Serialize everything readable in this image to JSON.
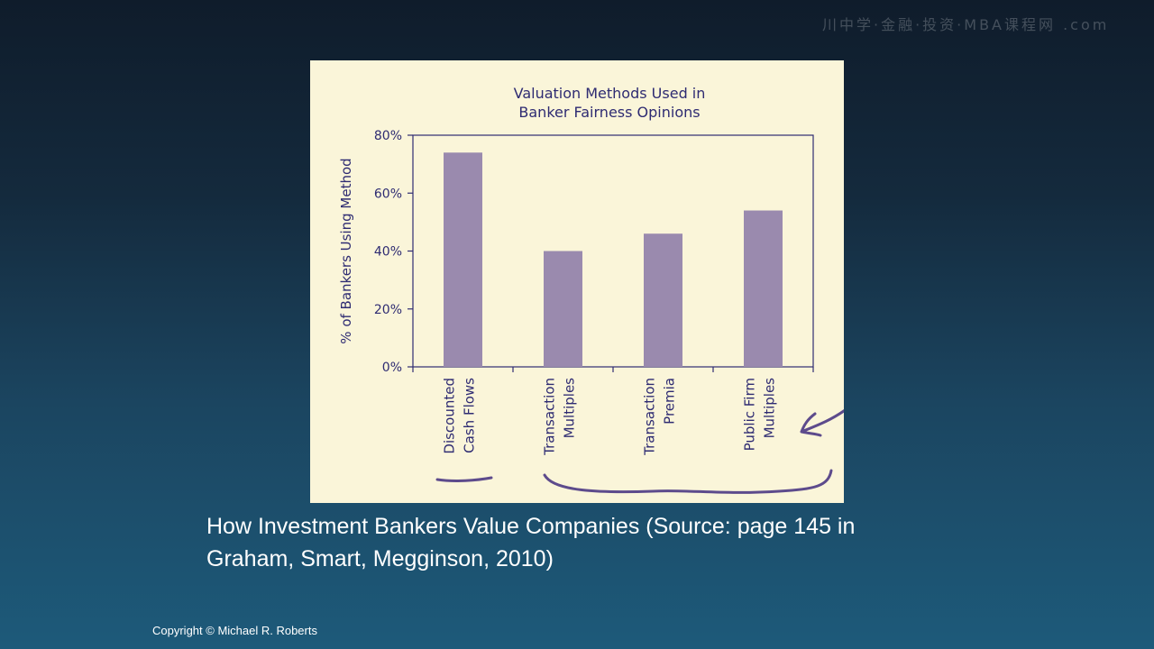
{
  "watermark": "川中学·金融·投资·MBA课程网 .com",
  "caption": "How Investment Bankers Value Companies (Source: page 145 in Graham, Smart, Megginson, 2010)",
  "copyright": "Copyright © Michael R. Roberts",
  "colors": {
    "bar": "#9a8aae",
    "panel": "#faf5d9",
    "text": "#2e2b72",
    "annotation": "#5d4b8c"
  },
  "chart_data": {
    "type": "bar",
    "title": "Valuation Methods Used in Banker Fairness Opinions",
    "title_lines": [
      "Valuation Methods Used in",
      "Banker Fairness Opinions"
    ],
    "ylabel": "% of Bankers Using Method",
    "xlabel": "",
    "ylim": [
      0,
      80
    ],
    "yticks": [
      "0%",
      "20%",
      "40%",
      "60%",
      "80%"
    ],
    "categories": [
      "Discounted Cash Flows",
      "Transaction Multiples",
      "Transaction Premia",
      "Public Firm Multiples"
    ],
    "category_lines": [
      [
        "Discounted",
        "Cash Flows"
      ],
      [
        "Transaction",
        "Multiples"
      ],
      [
        "Transaction",
        "Premia"
      ],
      [
        "Public Firm",
        "Multiples"
      ]
    ],
    "values": [
      74,
      40,
      46,
      54
    ],
    "grid": false,
    "legend": "none"
  }
}
